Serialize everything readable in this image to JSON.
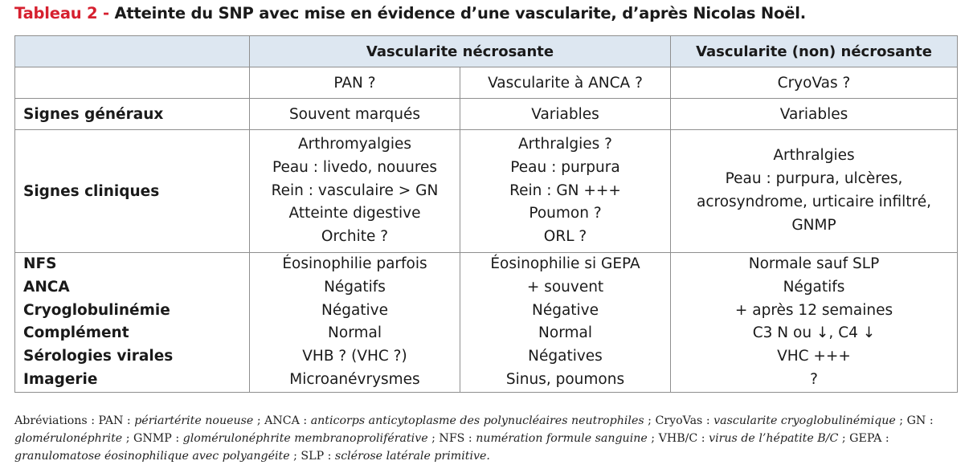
{
  "title": {
    "label": "Tableau 2 - ",
    "text": "Atteinte du SNP avec mise en évidence d’une vascularite, d’après Nicolas Noël."
  },
  "table": {
    "header": {
      "empty": "",
      "group_necrosante": "Vascularite nécrosante",
      "group_non_necrosante": "Vascularite (non) nécrosante"
    },
    "subheader": [
      "",
      "PAN ?",
      "Vascularite à ANCA ?",
      "CryoVas ?"
    ],
    "signes_generaux": {
      "label": "Signes généraux",
      "values": [
        "Souvent marqués",
        "Variables",
        "Variables"
      ]
    },
    "signes_cliniques": {
      "label": "Signes cliniques",
      "pan": [
        "Arthromyalgies",
        "Peau : livedo, nouures",
        "Rein : vasculaire > GN",
        "Atteinte digestive",
        "Orchite ?"
      ],
      "anca": [
        "Arthralgies ?",
        "Peau : purpura",
        "Rein : GN +++",
        "Poumon ?",
        "ORL ?"
      ],
      "cryovas": [
        "Arthralgies",
        "Peau : purpura, ulcères,",
        "acrosyndrome, urticaire infiltré,",
        "GNMP"
      ]
    },
    "biologie": {
      "labels": [
        "NFS",
        "ANCA",
        "Cryoglobulinémie",
        "Complément",
        "Sérologies virales",
        "Imagerie"
      ],
      "pan": [
        "Éosinophilie parfois",
        "Négatifs",
        "Négative",
        "Normal",
        "VHB ? (VHC ?)",
        "Microanévrysmes"
      ],
      "anca": [
        "Éosinophilie si GEPA",
        "+ souvent",
        "Négative",
        "Normal",
        "Négatives",
        "Sinus, poumons"
      ],
      "cryovas": [
        "Normale sauf SLP",
        "Négatifs",
        "+ après 12 semaines",
        "C3 N ou ↓, C4 ↓",
        "VHC +++",
        "?"
      ]
    }
  },
  "footnote": [
    {
      "prefix": "Abréviations : PAN : ",
      "def": "périartérite noueuse"
    },
    {
      "prefix": " ; ANCA : ",
      "def": "anticorps anticytoplasme des polynucléaires neutrophiles"
    },
    {
      "prefix": " ; CryoVas : ",
      "def": "vascularite cryoglobulinémique"
    },
    {
      "prefix": " ; GN : ",
      "def": "glomérulonéphrite"
    },
    {
      "prefix": " ; GNMP : ",
      "def": "glomérulonéphrite membranoproliférative"
    },
    {
      "prefix": " ; NFS : ",
      "def": "numération formule sanguine"
    },
    {
      "prefix": " ; VHB/C : ",
      "def": "virus de l’hépatite B/C"
    },
    {
      "prefix": " ; GEPA : ",
      "def": "granulomatose éosinophilique avec polyangéite"
    },
    {
      "prefix": " ; SLP : ",
      "def": "sclérose latérale primitive."
    }
  ],
  "colors": {
    "title_label": "#d6202f",
    "header_bg": "#dde7f1",
    "border": "#8f8f8f"
  }
}
